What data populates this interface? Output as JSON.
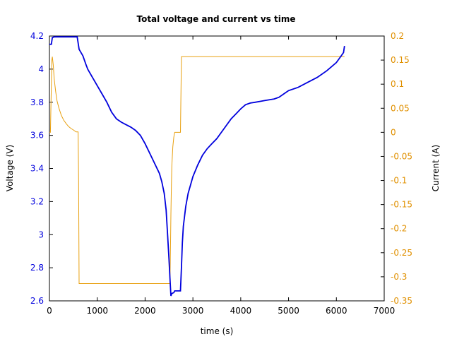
{
  "chart_data": {
    "type": "line",
    "title": "Total voltage and current vs time",
    "xlabel": "time (s)",
    "ylabel_left": "Voltage (V)",
    "ylabel_right": "Current (A)",
    "xlim": [
      0,
      7000
    ],
    "ylim_left": [
      2.6,
      4.2
    ],
    "ylim_right": [
      -0.35,
      0.2
    ],
    "x_ticks": [
      "0",
      "1000",
      "2000",
      "3000",
      "4000",
      "5000",
      "6000",
      "7000"
    ],
    "y_left_ticks": [
      "2.6",
      "2.8",
      "3",
      "3.2",
      "3.4",
      "3.6",
      "3.8",
      "4",
      "4.2"
    ],
    "y_right_ticks": [
      "-0.35",
      "-0.3",
      "-0.25",
      "-0.2",
      "-0.15",
      "-0.1",
      "-0.05",
      "0",
      "0.05",
      "0.1",
      "0.15",
      "0.2"
    ],
    "grid": false,
    "colors": {
      "voltage": "#0000dd",
      "current": "#e8a010",
      "left_axis": "#0000dd",
      "right_axis": "#e09000"
    },
    "series": [
      {
        "axis": "left",
        "x": [
          0,
          40,
          60,
          100,
          200,
          400,
          560,
          580,
          620,
          700,
          760,
          800,
          900,
          1000,
          1100,
          1200,
          1300,
          1400,
          1500,
          1600,
          1700,
          1800,
          1900,
          2000,
          2100,
          2200,
          2300,
          2350,
          2400,
          2440,
          2470,
          2500,
          2520,
          2540,
          2560,
          2600,
          2620,
          2660,
          2740,
          2760,
          2780,
          2800,
          2850,
          2900,
          2950,
          3000,
          3100,
          3200,
          3300,
          3400,
          3500,
          3600,
          3700,
          3800,
          3900,
          4000,
          4100,
          4200,
          4300,
          4400,
          4500,
          4600,
          4700,
          4800,
          4900,
          5000,
          5200,
          5400,
          5600,
          5800,
          6000,
          6100,
          6150,
          6170
        ],
        "y": [
          4.15,
          4.15,
          4.19,
          4.195,
          4.195,
          4.195,
          4.195,
          4.195,
          4.12,
          4.08,
          4.03,
          4.0,
          3.95,
          3.9,
          3.85,
          3.8,
          3.74,
          3.7,
          3.68,
          3.665,
          3.65,
          3.63,
          3.6,
          3.55,
          3.49,
          3.43,
          3.37,
          3.32,
          3.25,
          3.15,
          3.0,
          2.85,
          2.74,
          2.63,
          2.645,
          2.65,
          2.66,
          2.66,
          2.66,
          2.8,
          2.95,
          3.05,
          3.17,
          3.25,
          3.3,
          3.35,
          3.42,
          3.48,
          3.52,
          3.55,
          3.58,
          3.62,
          3.66,
          3.7,
          3.73,
          3.76,
          3.785,
          3.795,
          3.8,
          3.805,
          3.81,
          3.815,
          3.82,
          3.83,
          3.85,
          3.87,
          3.89,
          3.92,
          3.95,
          3.99,
          4.04,
          4.08,
          4.1,
          4.14
        ]
      },
      {
        "axis": "right",
        "x": [
          0,
          20,
          50,
          60,
          80,
          100,
          130,
          160,
          200,
          250,
          300,
          350,
          400,
          450,
          500,
          540,
          560,
          580,
          600,
          610,
          620,
          700,
          1000,
          2000,
          2400,
          2500,
          2520,
          2530,
          2540,
          2550,
          2560,
          2580,
          2600,
          2620,
          2640,
          2680,
          2700,
          2740,
          2760,
          2800,
          3000,
          4000,
          5000,
          6000,
          6170
        ],
        "y": [
          0,
          0,
          0.15,
          0.157,
          0.14,
          0.11,
          0.085,
          0.065,
          0.05,
          0.035,
          0.025,
          0.018,
          0.012,
          0.008,
          0.005,
          0.002,
          0.001,
          0.001,
          0.001,
          -0.1,
          -0.314,
          -0.314,
          -0.314,
          -0.314,
          -0.314,
          -0.314,
          -0.314,
          -0.25,
          -0.17,
          -0.11,
          -0.07,
          -0.03,
          -0.01,
          0,
          0,
          0,
          0,
          0,
          0.157,
          0.157,
          0.157,
          0.157,
          0.157,
          0.157,
          0.157
        ]
      }
    ]
  }
}
